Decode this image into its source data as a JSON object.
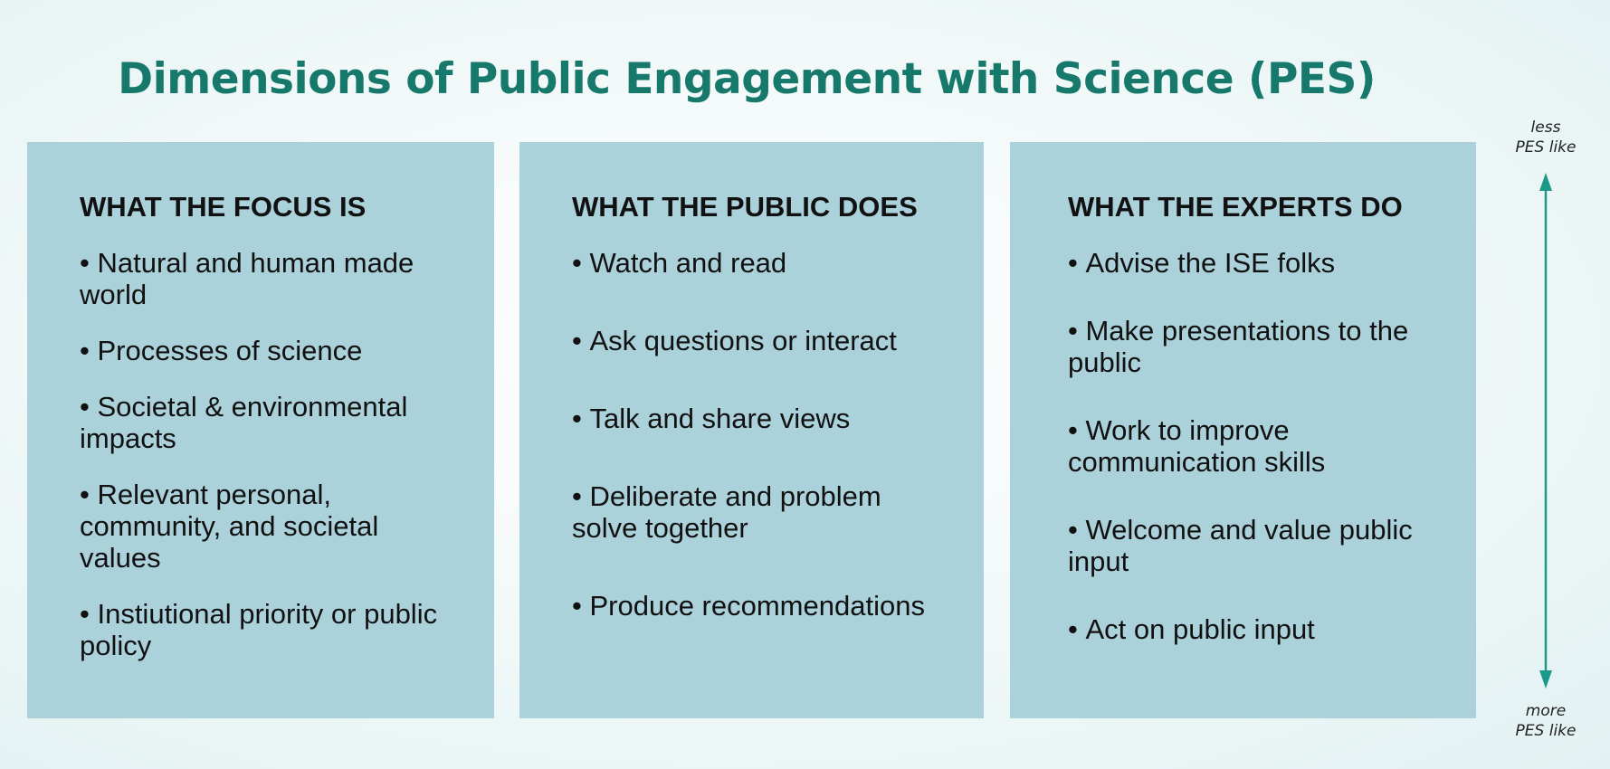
{
  "title": "Dimensions of Public Engagement with Science (PES)",
  "accent_color": "#16796b",
  "panel_color": "#abd2db",
  "columns": [
    {
      "heading": "WHAT THE FOCUS IS",
      "items": [
        "Natural and human made world",
        "Processes of science",
        "Societal & environmental impacts",
        "Relevant personal, community, and societal values",
        "Instiutional priority or public policy"
      ]
    },
    {
      "heading": "WHAT THE PUBLIC DOES",
      "items": [
        "Watch and read",
        "Ask questions or interact",
        "Talk and share views",
        "Deliberate and problem solve together",
        "Produce recommendations"
      ]
    },
    {
      "heading": "WHAT THE EXPERTS DO",
      "items": [
        "Advise the ISE folks",
        "Make presentations to the public",
        "Work to improve communication skills",
        "Welcome and value public input",
        "Act on public input"
      ]
    }
  ],
  "scale": {
    "top_line1": "less",
    "top_line2": "PES like",
    "bottom_line1": "more",
    "bottom_line2": "PES like",
    "arrow_icon": "double-headed-vertical-arrow",
    "arrow_color": "#1b9a8c"
  }
}
